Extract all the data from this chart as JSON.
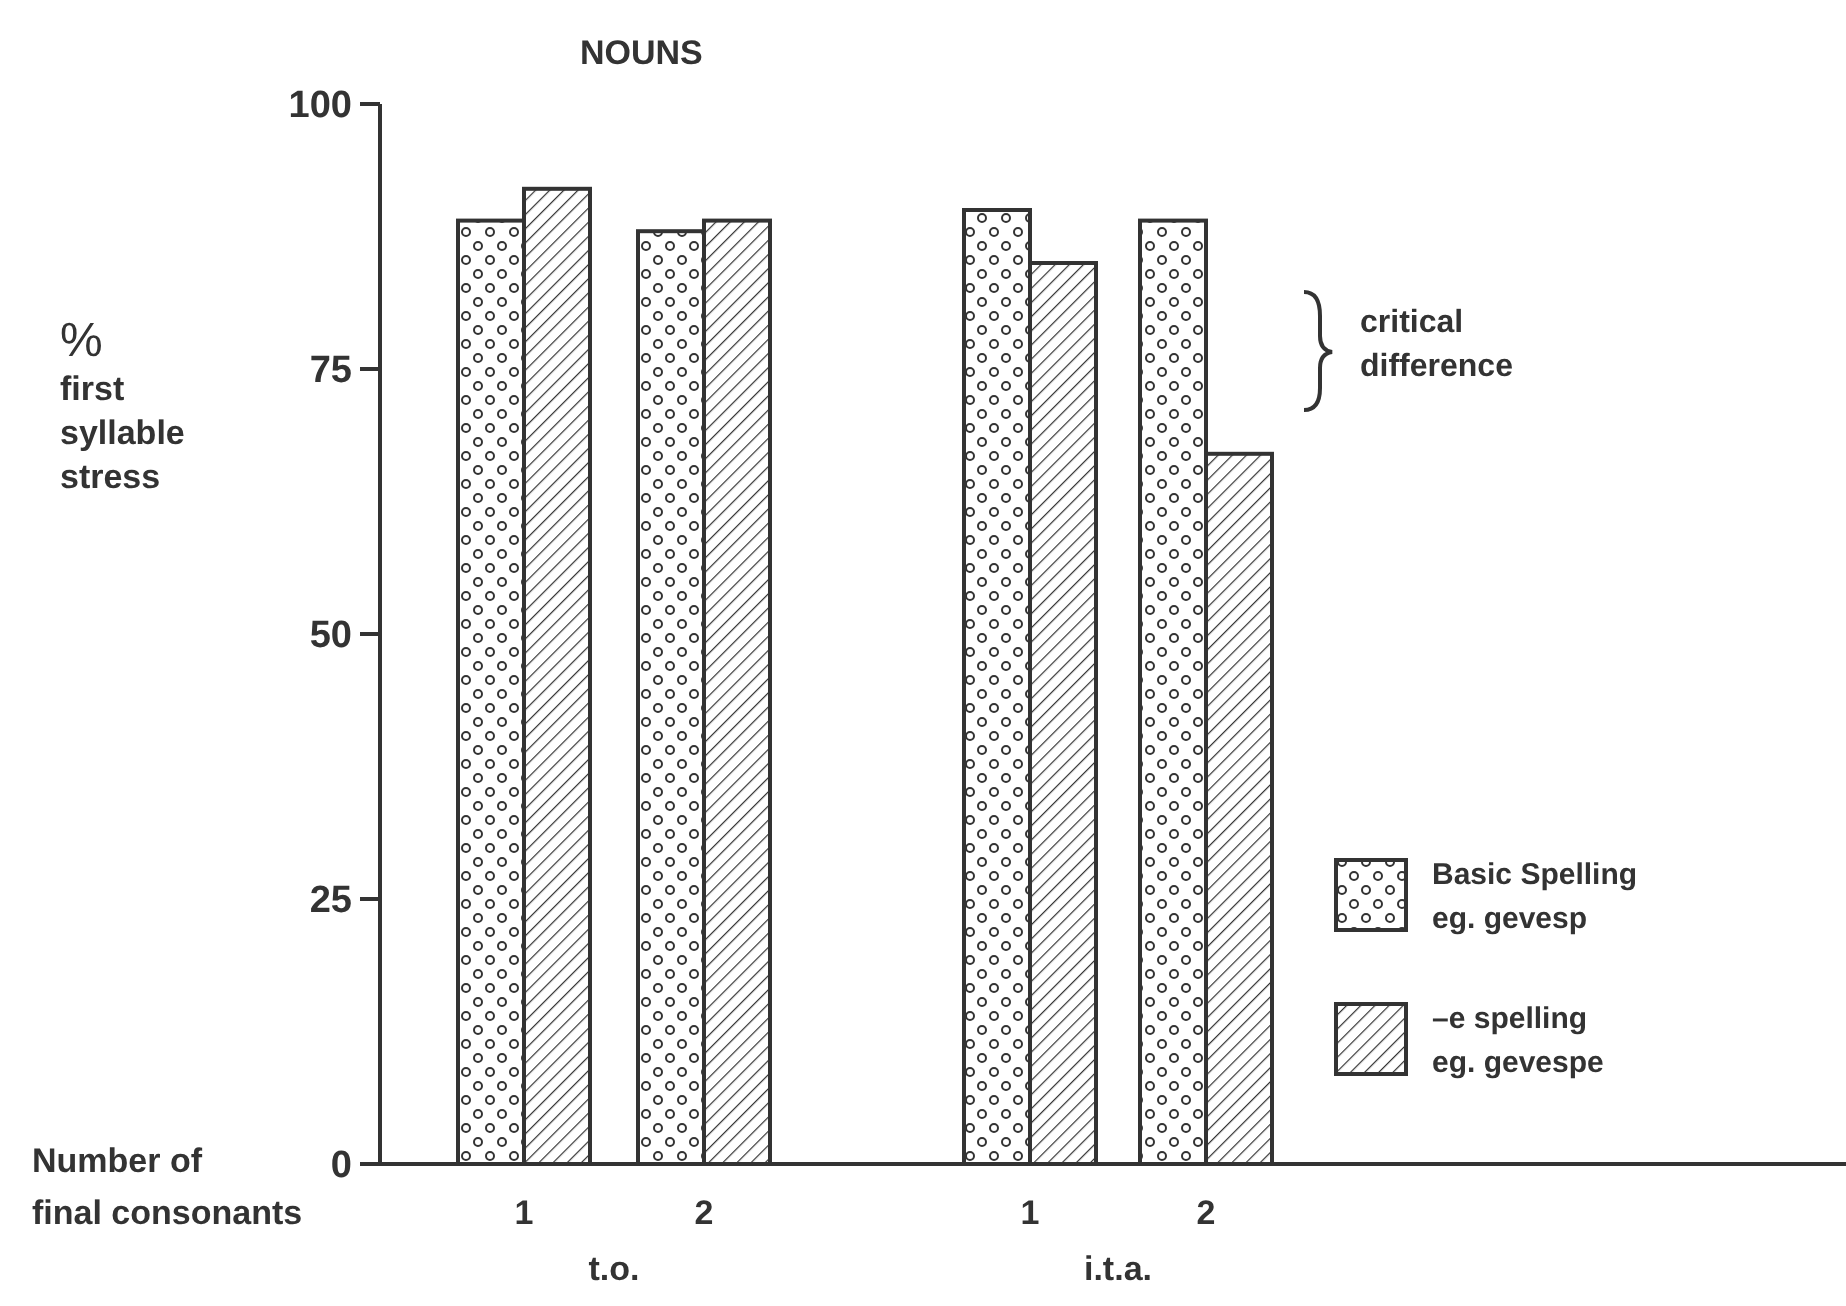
{
  "chart_data": {
    "type": "bar",
    "title": "NOUNS",
    "ylabel": "% first syllable stress",
    "xlabel": "Number of final consonants",
    "categories": [
      "1",
      "2",
      "1",
      "2"
    ],
    "series": [
      {
        "name": "Basic Spelling eg. gevesp",
        "color": "#333333",
        "values": [
          89,
          88,
          90,
          89
        ]
      },
      {
        "name": "–e spelling eg. gevespe",
        "color": "#333333",
        "values": [
          92,
          89,
          85,
          67
        ]
      }
    ],
    "ylim": [
      0,
      100
    ],
    "yticks": [
      0,
      25,
      50,
      75,
      100
    ],
    "grid": false,
    "legend": "right",
    "annotations": [
      "critical difference",
      "t.o.",
      "i.t.a."
    ]
  }
}
